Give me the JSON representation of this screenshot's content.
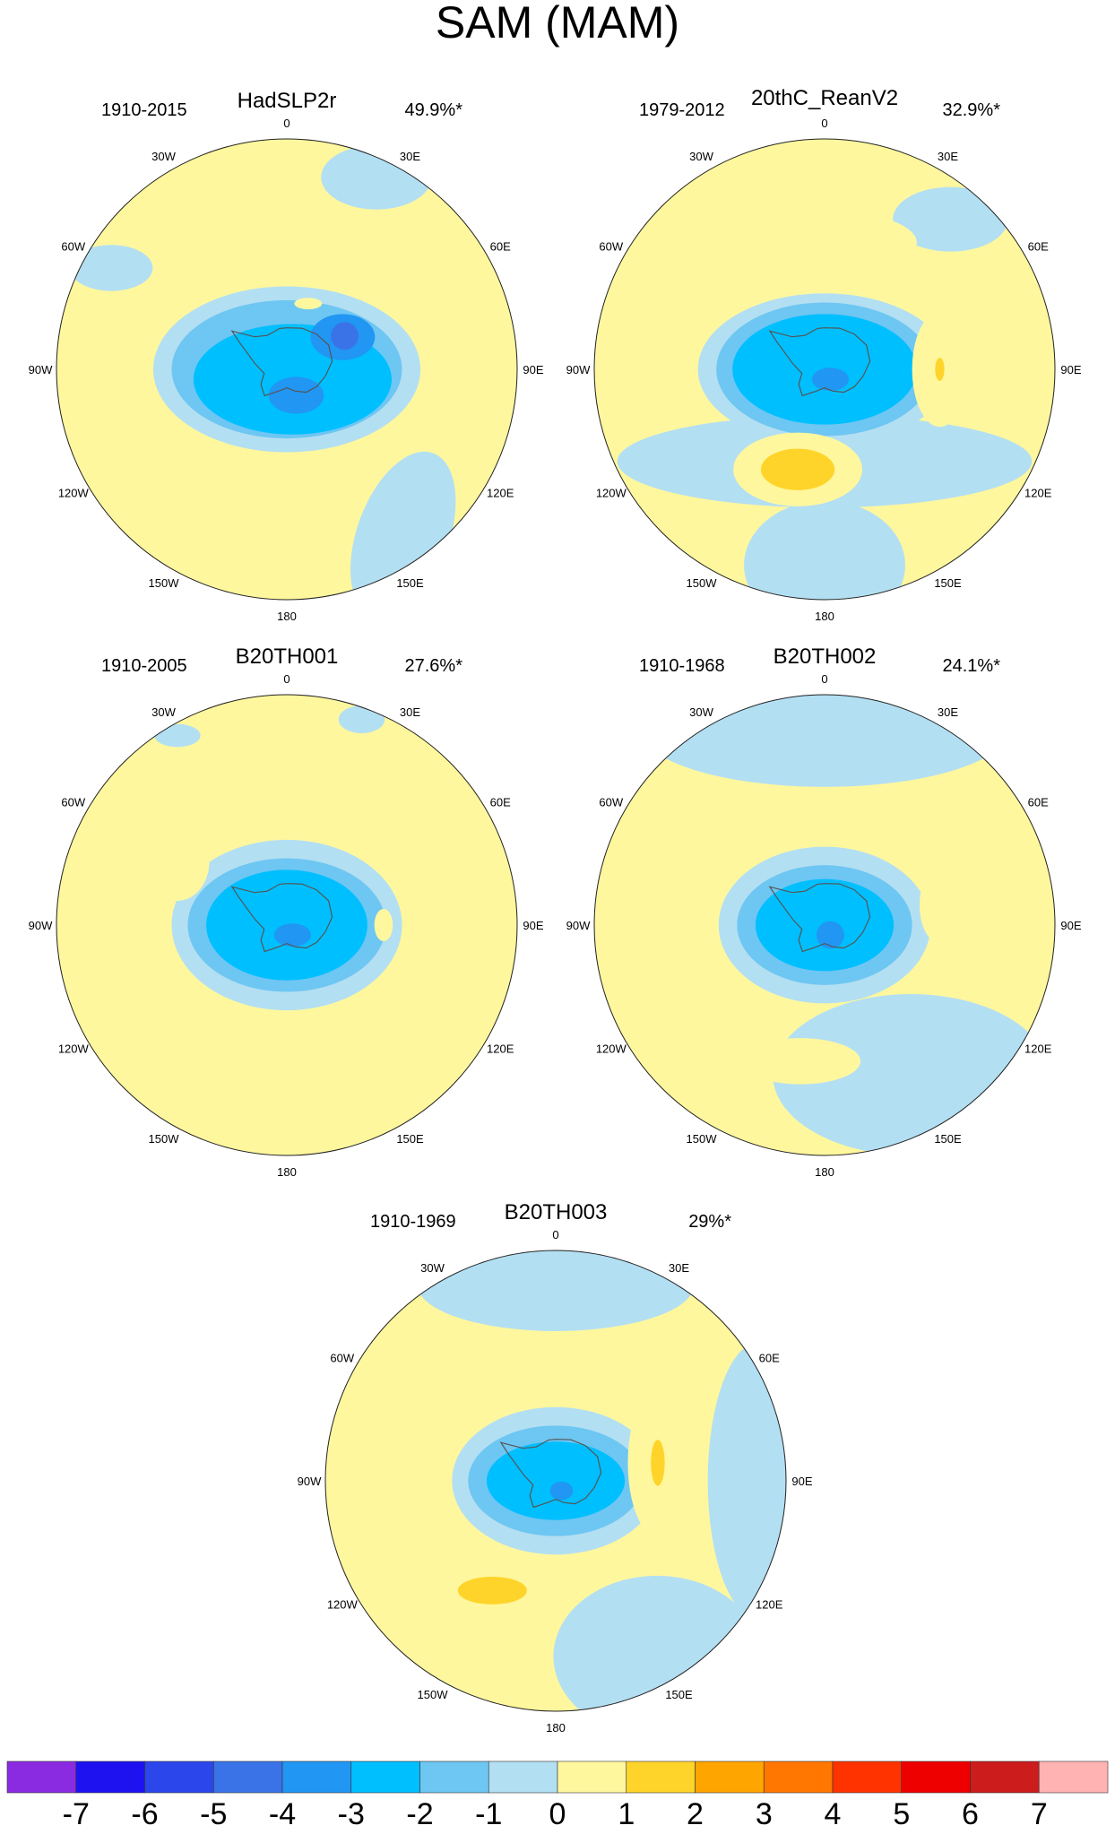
{
  "title": "SAM (MAM)",
  "lon_labels": [
    "0",
    "30E",
    "60E",
    "90E",
    "120E",
    "150E",
    "180",
    "150W",
    "120W",
    "90W",
    "60W",
    "30W"
  ],
  "panels": [
    {
      "name": "HadSLP2r",
      "period": "1910-2015",
      "variance": "49.9%*",
      "features": [
        {
          "level": -1,
          "lon": 180,
          "r": 0.0,
          "sx": 0.58,
          "sy": 0.36,
          "rot": 0
        },
        {
          "level": -2,
          "lon": 180,
          "r": 0.0,
          "sx": 0.5,
          "sy": 0.3,
          "rot": 0
        },
        {
          "level": -3,
          "lon": 150,
          "r": 0.05,
          "sx": 0.43,
          "sy": 0.24,
          "rot": 0
        },
        {
          "level": -4,
          "lon": 60,
          "r": 0.28,
          "sx": 0.14,
          "sy": 0.1,
          "rot": 0
        },
        {
          "level": -4,
          "lon": 160,
          "r": 0.12,
          "sx": 0.12,
          "sy": 0.08,
          "rot": 0
        },
        {
          "level": -5,
          "lon": 60,
          "r": 0.29,
          "sx": 0.06,
          "sy": 0.06,
          "rot": 0
        },
        {
          "level": -1,
          "lon": 145,
          "r": 0.88,
          "sx": 0.2,
          "sy": 0.38,
          "rot": 20
        },
        {
          "level": -1,
          "lon": 25,
          "r": 0.92,
          "sx": 0.24,
          "sy": 0.14,
          "rot": 0
        },
        {
          "level": -1,
          "lon": 300,
          "r": 0.88,
          "sx": 0.18,
          "sy": 0.1,
          "rot": 0
        },
        {
          "level": 1,
          "lon": 290,
          "r": 0.88,
          "sx": 0.07,
          "sy": 0.03,
          "rot": 0
        },
        {
          "level": 1,
          "lon": 18,
          "r": 0.3,
          "sx": 0.06,
          "sy": 0.025,
          "rot": 0
        }
      ]
    },
    {
      "name": "20thC_ReanV2",
      "period": "1979-2012",
      "variance": "32.9%*",
      "features": [
        {
          "level": -1,
          "lon": 180,
          "r": 0.4,
          "sx": 0.9,
          "sy": 0.2,
          "rot": 0
        },
        {
          "level": -1,
          "lon": 180,
          "r": 0.0,
          "sx": 0.55,
          "sy": 0.33,
          "rot": 0
        },
        {
          "level": -1,
          "lon": 180,
          "r": 0.85,
          "sx": 0.35,
          "sy": 0.28,
          "rot": 0
        },
        {
          "level": -1,
          "lon": 40,
          "r": 0.85,
          "sx": 0.25,
          "sy": 0.14,
          "rot": 0
        },
        {
          "level": -2,
          "lon": 180,
          "r": 0.0,
          "sx": 0.47,
          "sy": 0.29,
          "rot": 0
        },
        {
          "level": -3,
          "lon": 180,
          "r": 0.0,
          "sx": 0.4,
          "sy": 0.24,
          "rot": 0
        },
        {
          "level": -4,
          "lon": 150,
          "r": 0.05,
          "sx": 0.08,
          "sy": 0.05,
          "rot": 0
        },
        {
          "level": 1,
          "lon": 0,
          "r": 0.55,
          "sx": 0.4,
          "sy": 0.14,
          "rot": 0
        },
        {
          "level": 1,
          "lon": 90,
          "r": 0.5,
          "sx": 0.12,
          "sy": 0.25,
          "rot": 0
        },
        {
          "level": 1,
          "lon": 195,
          "r": 0.45,
          "sx": 0.28,
          "sy": 0.16,
          "rot": 0
        },
        {
          "level": 2,
          "lon": 195,
          "r": 0.45,
          "sx": 0.16,
          "sy": 0.09,
          "rot": 0
        },
        {
          "level": 2,
          "lon": 90,
          "r": 0.5,
          "sx": 0.02,
          "sy": 0.05,
          "rot": 0
        }
      ]
    },
    {
      "name": "B20TH001",
      "period": "1910-2005",
      "variance": "27.6%*",
      "features": [
        {
          "level": -1,
          "lon": 180,
          "r": 0.0,
          "sx": 0.5,
          "sy": 0.37,
          "rot": 0
        },
        {
          "level": -2,
          "lon": 180,
          "r": 0.0,
          "sx": 0.43,
          "sy": 0.29,
          "rot": 0
        },
        {
          "level": -3,
          "lon": 180,
          "r": 0.0,
          "sx": 0.35,
          "sy": 0.24,
          "rot": 0
        },
        {
          "level": -4,
          "lon": 150,
          "r": 0.05,
          "sx": 0.08,
          "sy": 0.05,
          "rot": 0
        },
        {
          "level": -1,
          "lon": 20,
          "r": 0.95,
          "sx": 0.1,
          "sy": 0.06,
          "rot": 0
        },
        {
          "level": -1,
          "lon": 330,
          "r": 0.95,
          "sx": 0.1,
          "sy": 0.05,
          "rot": 0
        },
        {
          "level": 1,
          "lon": 300,
          "r": 0.55,
          "sx": 0.14,
          "sy": 0.17,
          "rot": 0
        },
        {
          "level": 1,
          "lon": 90,
          "r": 0.42,
          "sx": 0.04,
          "sy": 0.07,
          "rot": 0
        },
        {
          "level": 1,
          "lon": 210,
          "r": 0.75,
          "sx": 0.22,
          "sy": 0.12,
          "rot": 0
        }
      ]
    },
    {
      "name": "B20TH002",
      "period": "1910-1968",
      "variance": "24.1%*",
      "features": [
        {
          "level": -1,
          "lon": 0,
          "r": 0.85,
          "sx": 0.8,
          "sy": 0.25,
          "rot": 0
        },
        {
          "level": -1,
          "lon": 150,
          "r": 0.75,
          "sx": 0.6,
          "sy": 0.35,
          "rot": 0
        },
        {
          "level": -1,
          "lon": 180,
          "r": 0.0,
          "sx": 0.46,
          "sy": 0.34,
          "rot": 0
        },
        {
          "level": -2,
          "lon": 180,
          "r": 0.0,
          "sx": 0.38,
          "sy": 0.26,
          "rot": 0
        },
        {
          "level": -3,
          "lon": 180,
          "r": 0.0,
          "sx": 0.3,
          "sy": 0.2,
          "rot": 0
        },
        {
          "level": -4,
          "lon": 150,
          "r": 0.05,
          "sx": 0.06,
          "sy": 0.06,
          "rot": 0
        },
        {
          "level": 1,
          "lon": 300,
          "r": 0.6,
          "sx": 0.08,
          "sy": 0.06,
          "rot": 0
        },
        {
          "level": 1,
          "lon": 80,
          "r": 0.5,
          "sx": 0.08,
          "sy": 0.16,
          "rot": 0
        },
        {
          "level": 1,
          "lon": 190,
          "r": 0.6,
          "sx": 0.26,
          "sy": 0.1,
          "rot": 0
        }
      ]
    },
    {
      "name": "B20TH003",
      "period": "1910-1969",
      "variance": "29%*",
      "features": [
        {
          "level": -1,
          "lon": 0,
          "r": 0.85,
          "sx": 0.6,
          "sy": 0.2,
          "rot": 0
        },
        {
          "level": -1,
          "lon": 90,
          "r": 0.88,
          "sx": 0.22,
          "sy": 0.6,
          "rot": 0
        },
        {
          "level": -1,
          "lon": 150,
          "r": 0.88,
          "sx": 0.45,
          "sy": 0.35,
          "rot": 0
        },
        {
          "level": -1,
          "lon": 180,
          "r": 0.0,
          "sx": 0.45,
          "sy": 0.32,
          "rot": 0
        },
        {
          "level": -2,
          "lon": 180,
          "r": 0.0,
          "sx": 0.38,
          "sy": 0.24,
          "rot": 0
        },
        {
          "level": -3,
          "lon": 180,
          "r": 0.0,
          "sx": 0.3,
          "sy": 0.17,
          "rot": 0
        },
        {
          "level": -4,
          "lon": 150,
          "r": 0.05,
          "sx": 0.05,
          "sy": 0.04,
          "rot": 0
        },
        {
          "level": 1,
          "lon": 320,
          "r": 0.55,
          "sx": 0.16,
          "sy": 0.06,
          "rot": 0
        },
        {
          "level": 1,
          "lon": 80,
          "r": 0.45,
          "sx": 0.13,
          "sy": 0.32,
          "rot": 0
        },
        {
          "level": 2,
          "lon": 80,
          "r": 0.45,
          "sx": 0.03,
          "sy": 0.1,
          "rot": 0
        },
        {
          "level": 1,
          "lon": 210,
          "r": 0.55,
          "sx": 0.38,
          "sy": 0.14,
          "rot": 0
        },
        {
          "level": 2,
          "lon": 210,
          "r": 0.55,
          "sx": 0.15,
          "sy": 0.06,
          "rot": 0
        }
      ]
    }
  ],
  "colorbar": {
    "colors": [
      "#8A2BE2",
      "#1E12F0",
      "#2B47EB",
      "#3A73E8",
      "#2196F3",
      "#00BFFF",
      "#6EC6F2",
      "#B3DFF2",
      "#FFF79E",
      "#FFD42A",
      "#FFA500",
      "#FF7700",
      "#FF3300",
      "#EE0000",
      "#CC1C1C",
      "#FFB3B3"
    ],
    "labels": [
      "-7",
      "-6",
      "-5",
      "-4",
      "-3",
      "-2",
      "-1",
      "0",
      "1",
      "2",
      "3",
      "4",
      "5",
      "6",
      "7"
    ],
    "zero_fill_color": "#FFF79E"
  }
}
